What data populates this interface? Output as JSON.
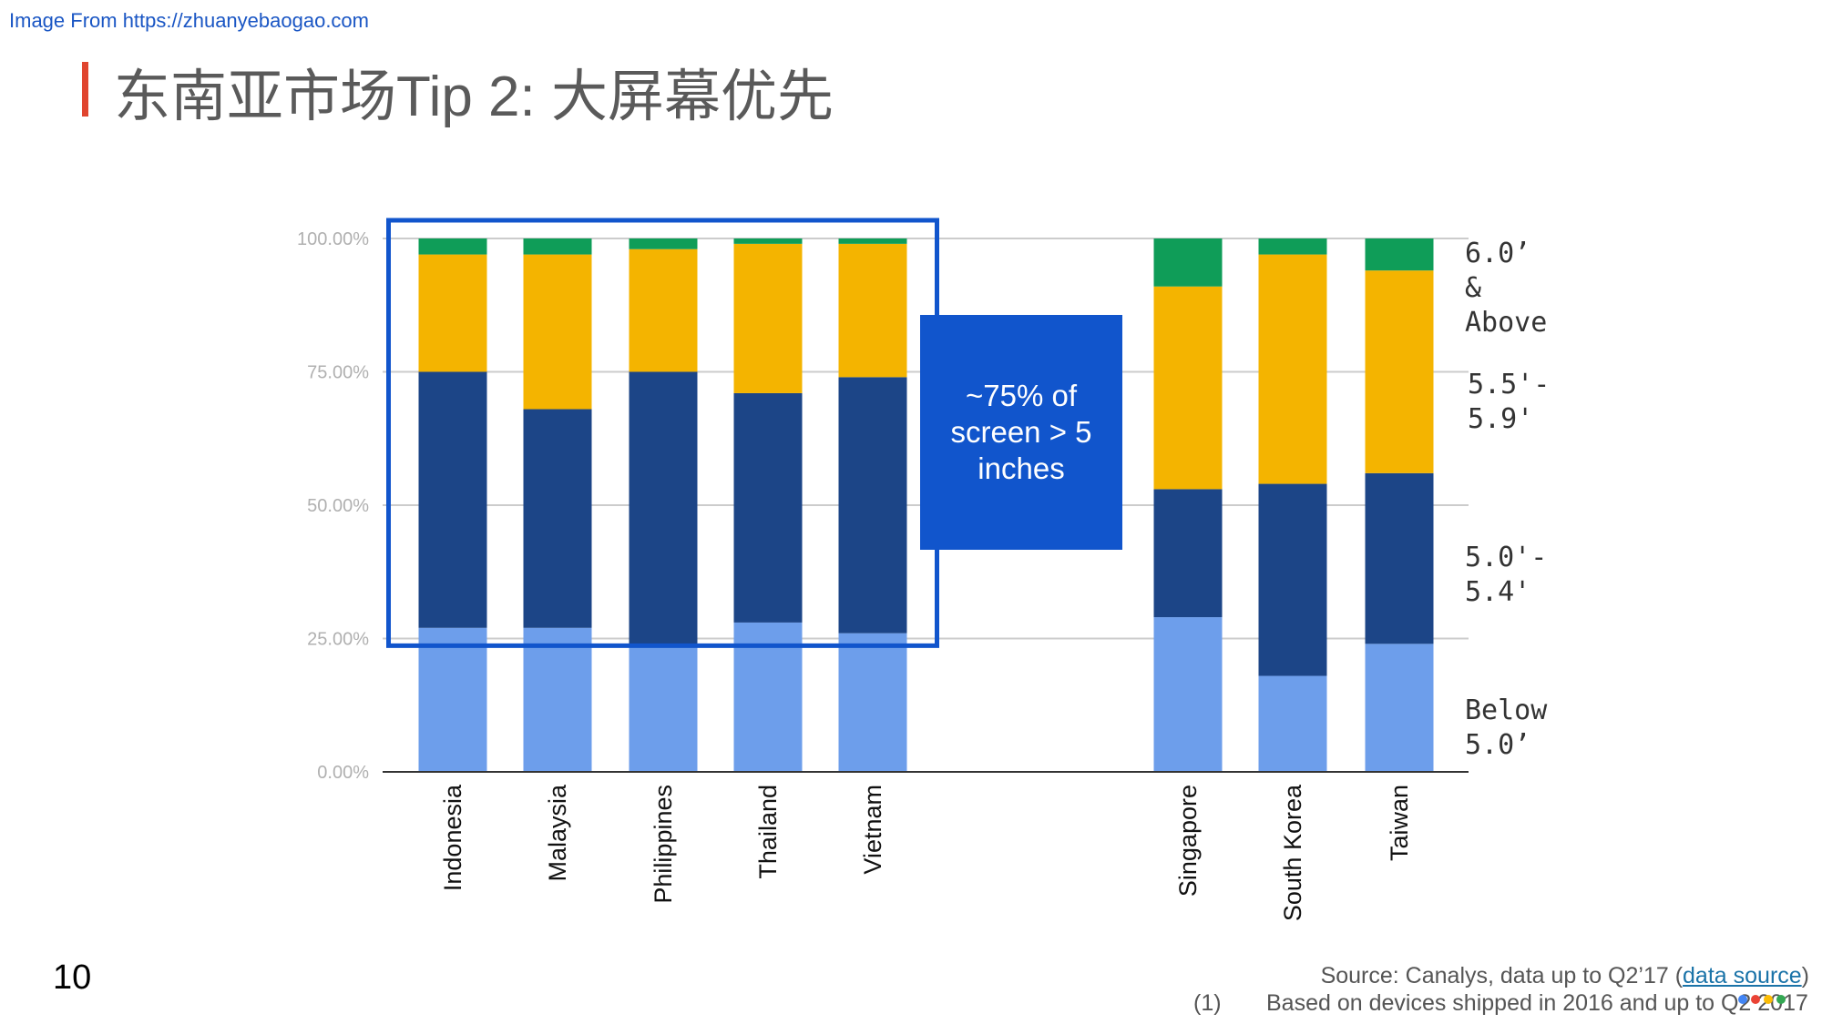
{
  "watermark": "Image From https://zhuanyebaogao.com",
  "title": "东南亚市场Tip 2: 大屏幕优先",
  "callout": "~75% of screen > 5 inches",
  "page_number": "10",
  "source": {
    "prefix": "Source: Canalys, data up to Q2’17 (",
    "link_text": "data source",
    "suffix": ")"
  },
  "footnote": {
    "number": "(1)",
    "text": "Based on devices shipped in 2016 and up to Q2 2017"
  },
  "colors": {
    "below_5": "#6d9eeb",
    "5_0_5_4": "#1c4587",
    "5_5_5_9": "#f4b400",
    "6_0_above": "#0f9d58",
    "highlight_box": "#1155cc",
    "accent": "#e0452f"
  },
  "chart_data": {
    "type": "bar",
    "stacked": true,
    "categories": [
      "Indonesia",
      "Malaysia",
      "Philippines",
      "Thailand",
      "Vietnam",
      "Singapore",
      "South Korea",
      "Taiwan"
    ],
    "series": [
      {
        "name": "Below 5.0’",
        "color": "#6d9eeb",
        "values": [
          27,
          27,
          24,
          28,
          26,
          29,
          18,
          24
        ]
      },
      {
        "name": "5.0'- 5.4'",
        "color": "#1c4587",
        "values": [
          48,
          41,
          51,
          43,
          48,
          24,
          36,
          32
        ]
      },
      {
        "name": "5.5'- 5.9'",
        "color": "#f4b400",
        "values": [
          22,
          29,
          23,
          28,
          25,
          38,
          43,
          38
        ]
      },
      {
        "name": "6.0’ & Above",
        "color": "#0f9d58",
        "values": [
          3,
          3,
          2,
          1,
          1,
          9,
          3,
          6
        ]
      }
    ],
    "y_ticks": [
      "0.00%",
      "25.00%",
      "50.00%",
      "75.00%",
      "100.00%"
    ],
    "ylim": [
      0,
      100
    ],
    "grid": true,
    "legend_placement": "right, beside last bar",
    "highlight": {
      "categories": [
        "Indonesia",
        "Malaysia",
        "Philippines",
        "Thailand",
        "Vietnam"
      ],
      "from": 24,
      "to": 100
    }
  }
}
